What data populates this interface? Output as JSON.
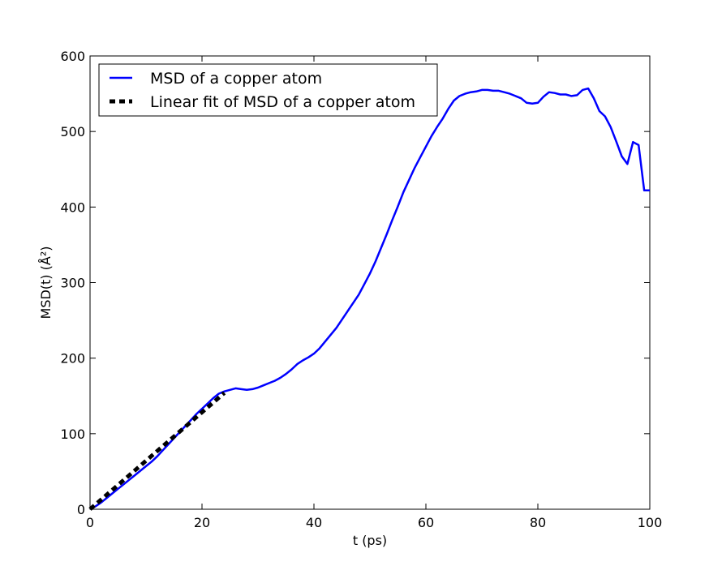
{
  "chart_data": {
    "type": "line",
    "title": "",
    "xlabel": "t (ps)",
    "ylabel": "MSD(t) (Å²)",
    "xlim": [
      0,
      100
    ],
    "ylim": [
      0,
      600
    ],
    "xticks": [
      0,
      20,
      40,
      60,
      80,
      100
    ],
    "yticks": [
      0,
      100,
      200,
      300,
      400,
      500,
      600
    ],
    "grid": false,
    "legend_position": "upper-left",
    "series": [
      {
        "name": "MSD of a copper atom",
        "color": "#0000ff",
        "style": "solid",
        "x": [
          0,
          1,
          2,
          3,
          4,
          5,
          6,
          7,
          8,
          9,
          10,
          11,
          12,
          13,
          14,
          15,
          16,
          17,
          18,
          19,
          20,
          21,
          22,
          23,
          24,
          25,
          26,
          27,
          28,
          29,
          30,
          31,
          32,
          33,
          34,
          35,
          36,
          37,
          38,
          39,
          40,
          41,
          42,
          43,
          44,
          45,
          46,
          47,
          48,
          49,
          50,
          51,
          52,
          53,
          54,
          55,
          56,
          57,
          58,
          59,
          60,
          61,
          62,
          63,
          64,
          65,
          66,
          67,
          68,
          69,
          70,
          71,
          72,
          73,
          74,
          75,
          76,
          77,
          78,
          79,
          80,
          81,
          82,
          83,
          84,
          85,
          86,
          87,
          88,
          89,
          90,
          91,
          92,
          93,
          94,
          95,
          96,
          97,
          98,
          99,
          100
        ],
        "values": [
          0,
          4,
          9,
          15,
          21,
          27,
          33,
          39,
          45,
          51,
          57,
          63,
          70,
          78,
          86,
          94,
          102,
          110,
          118,
          126,
          133,
          140,
          147,
          153,
          156,
          158,
          160,
          159,
          158,
          159,
          161,
          164,
          167,
          170,
          174,
          179,
          185,
          192,
          197,
          201,
          206,
          213,
          222,
          231,
          240,
          251,
          262,
          273,
          284,
          298,
          312,
          328,
          346,
          364,
          383,
          401,
          420,
          436,
          452,
          466,
          480,
          494,
          506,
          517,
          530,
          541,
          547,
          550,
          552,
          553,
          555,
          555,
          554,
          554,
          552,
          550,
          547,
          544,
          538,
          537,
          538,
          546,
          552,
          551,
          549,
          549,
          547,
          548,
          555,
          557,
          544,
          527,
          520,
          506,
          487,
          467,
          457,
          486,
          482,
          422,
          422
        ]
      },
      {
        "name": "Linear fit of MSD of a copper atom",
        "color": "#000000",
        "style": "dashed",
        "x": [
          0,
          24
        ],
        "values": [
          0,
          154
        ]
      }
    ]
  }
}
